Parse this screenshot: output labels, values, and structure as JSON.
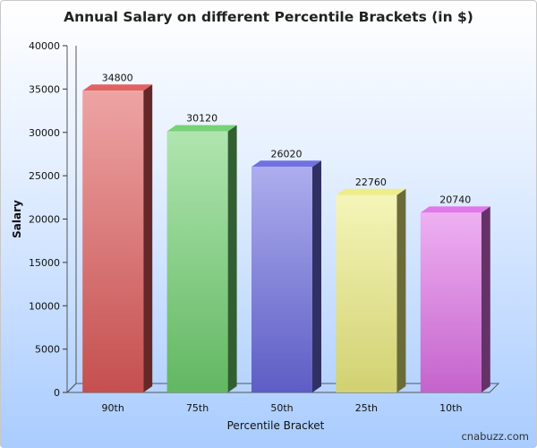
{
  "chart_data": {
    "type": "bar",
    "title": "Annual Salary on different Percentile Brackets (in $)",
    "xlabel": "Percentile Bracket",
    "ylabel": "Salary",
    "categories": [
      "90th",
      "75th",
      "50th",
      "25th",
      "10th"
    ],
    "values": [
      34800,
      30120,
      26020,
      22760,
      20740
    ],
    "data_labels": [
      "34800",
      "30120",
      "26020",
      "22760",
      "20740"
    ],
    "ylim": [
      0,
      40000
    ],
    "yticks": [
      0,
      5000,
      10000,
      15000,
      20000,
      25000,
      30000,
      35000,
      40000
    ],
    "grid": false,
    "legend": "none",
    "colors": [
      "#e05a5a",
      "#6fd06f",
      "#6a6ae0",
      "#eded80",
      "#e070e8"
    ],
    "style": "3d-bars"
  },
  "watermark": "cnabuzz.com",
  "background_colors": [
    "#ffffff",
    "#a9ccff"
  ]
}
